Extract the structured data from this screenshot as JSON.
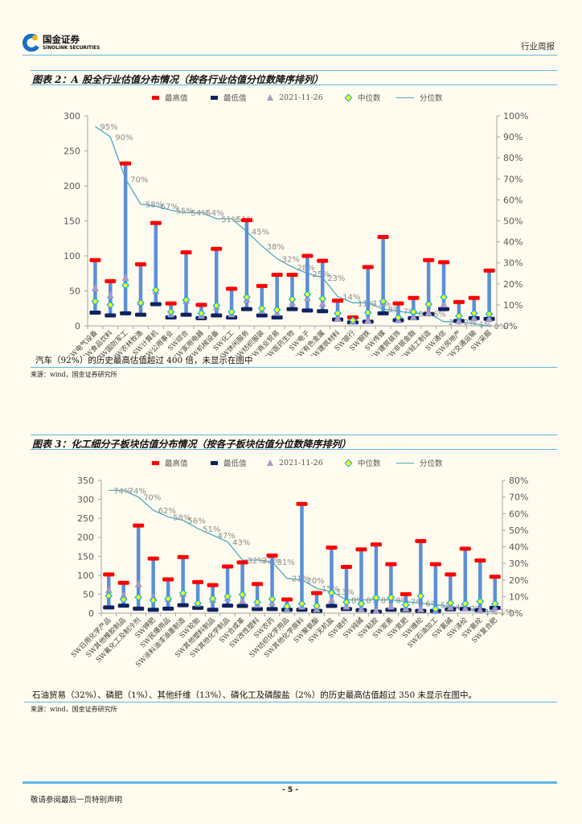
{
  "header": {
    "company_cn": "国金证券",
    "company_en": "SINOLINK SECURITIES",
    "report_type": "行业周报"
  },
  "figures": [
    {
      "note": "汽车（92%）的历史最高估值超过 400 倍，未显示在图中",
      "source": "来源：wind，国金证券研究所"
    },
    {
      "note": "石油贸易（32%）、磷肥（1%）、其他纤维（13%）、磷化工及磷酸盐（2%）的历史最高估值超过 350 未显示在图中。",
      "source": "来源：wind，国金证券研究所"
    }
  ],
  "footer": {
    "page": "- 5 -",
    "disclaimer": "敬请参阅最后一页特别声明"
  },
  "colors": {
    "accent_blue": "#5bb8e8",
    "max": "#ff0000",
    "min": "#0e2260",
    "current": "#a79bc8",
    "median_fill": "#ffff00",
    "median_border": "#00b0f0",
    "range_bar": "#5b8fd8",
    "percentile_line": "#4bacc6"
  },
  "chart_data": [
    {
      "type": "bar",
      "subtype": "high-low range with markers, percentile line on secondary axis",
      "title": "图表 2：A 股全行业估值分布情况（按各行业估值分位数降序排列）",
      "categories": [
        "SW电气设备",
        "SW食品饮料",
        "SW国防军工",
        "SW农林牧渔",
        "SW计算机",
        "SW公用事业",
        "SW综合",
        "SW家用电器",
        "SW机械设备",
        "SW化工",
        "SW休闲服务",
        "SW纺织服装",
        "SW商业贸易",
        "SW医药生物",
        "SW电子",
        "SW有色金属",
        "SW建筑材料",
        "SW银行",
        "SW钢铁",
        "SW传媒",
        "SW建筑装饰",
        "SW非银金融",
        "SW轻工制造",
        "SW通信",
        "SW房地产",
        "SW交通运输",
        "SW采掘"
      ],
      "series": [
        {
          "name": "最高值",
          "marker": "bar-cap",
          "values": [
            94,
            64,
            232,
            88,
            147,
            32,
            105,
            30,
            110,
            53,
            151,
            57,
            73,
            73,
            100,
            93,
            36,
            12,
            84,
            127,
            32,
            40,
            94,
            91,
            34,
            40,
            79
          ]
        },
        {
          "name": "最低值",
          "marker": "bar-cap",
          "values": [
            19,
            15,
            18,
            16,
            31,
            12,
            16,
            11,
            15,
            12,
            24,
            15,
            12,
            24,
            22,
            21,
            9,
            5,
            6,
            18,
            8,
            11,
            17,
            24,
            7,
            11,
            10
          ]
        },
        {
          "name": "2021-11-26",
          "marker": "triangle",
          "values": [
            54,
            44,
            69,
            34,
            50,
            17,
            36,
            15,
            27,
            17,
            38,
            22,
            19,
            33,
            40,
            32,
            11,
            6.5,
            8,
            33,
            8.5,
            13,
            19,
            31,
            7.5,
            11,
            10
          ]
        },
        {
          "name": "中位数",
          "marker": "diamond",
          "values": [
            35,
            30,
            58,
            33,
            51,
            20,
            37,
            18,
            29,
            20,
            41,
            25,
            23,
            38,
            45,
            39,
            18,
            8,
            19,
            35,
            12,
            20,
            31,
            41,
            14,
            18,
            17
          ]
        },
        {
          "name": "分位数",
          "type": "line",
          "axis": "right",
          "unit": "%",
          "values": [
            95,
            90,
            70,
            58,
            57,
            55,
            54,
            54,
            51,
            51,
            45,
            38,
            32,
            28,
            25,
            23,
            14,
            11,
            11,
            8,
            7,
            6,
            6,
            2,
            2,
            1,
            0
          ],
          "labels": [
            "95%",
            "90%",
            "70%",
            "58%",
            "57%",
            "55%",
            "54%",
            "54%",
            "51%",
            "51%",
            "45%",
            "38%",
            "32%",
            "28%",
            "25%",
            "23%",
            "14%",
            "11%",
            "11%",
            "8%",
            "7%",
            "6%",
            "6%",
            "2%",
            "2%",
            "1%",
            "0%"
          ]
        }
      ],
      "xlabel": "",
      "ylabel": "",
      "ylim": [
        0,
        300
      ],
      "yticks": [
        0,
        50,
        100,
        150,
        200,
        250,
        300
      ],
      "y2lim": [
        0,
        100
      ],
      "y2ticks": [
        "0%",
        "10%",
        "20%",
        "30%",
        "40%",
        "50%",
        "60%",
        "70%",
        "80%",
        "90%",
        "100%"
      ],
      "grid": false,
      "legend": "top"
    },
    {
      "type": "bar",
      "subtype": "high-low range with markers, percentile line on secondary axis",
      "title": "图表 3：化工细分子板块估值分布情况（按各子板块估值分位数降序排列）",
      "categories": [
        "SW日用化学产品",
        "SW其他橡胶制品",
        "SW氟化工及制冷剂",
        "SW钾肥",
        "SW民爆用品",
        "SW涂料油漆油墨制造",
        "SW轮胎",
        "SW其他塑料制品",
        "SW其他化学制品",
        "SW合成革",
        "SW改性塑料",
        "SW农药",
        "SW纺织化学用品",
        "SW其他化学原料",
        "SW聚氨酯",
        "SW无机盐",
        "SW玻纤",
        "SW纯碱",
        "SW粘胶",
        "SW炭黑",
        "SW氮肥",
        "SW维纶",
        "SW石油加工",
        "SW氯碱",
        "SW涤纶",
        "SW氨纶",
        "SW复合肥"
      ],
      "series": [
        {
          "name": "最高值",
          "marker": "bar-cap",
          "values": [
            102,
            80,
            231,
            144,
            89,
            148,
            82,
            74,
            123,
            134,
            77,
            152,
            36,
            288,
            53,
            173,
            122,
            168,
            181,
            129,
            50,
            190,
            129,
            102,
            170,
            139,
            96
          ]
        },
        {
          "name": "最低值",
          "marker": "bar-cap",
          "values": [
            15,
            20,
            12,
            9,
            12,
            21,
            14,
            9,
            20,
            19,
            11,
            11,
            9,
            9,
            6,
            19,
            11,
            8,
            4,
            9,
            8,
            6,
            6,
            10,
            11,
            8,
            14
          ]
        },
        {
          "name": "2021-11-26",
          "marker": "triangle",
          "values": [
            61,
            47,
            77,
            43,
            38,
            52,
            26,
            36,
            40,
            34,
            23,
            28,
            10,
            18,
            11,
            35,
            18,
            11,
            7,
            18,
            13,
            11,
            6,
            16,
            13,
            8,
            14
          ]
        },
        {
          "name": "中位数",
          "marker": "diamond",
          "values": [
            46,
            36,
            42,
            34,
            38,
            53,
            26,
            38,
            44,
            49,
            29,
            37,
            18,
            25,
            19,
            54,
            29,
            25,
            41,
            41,
            22,
            45,
            11,
            27,
            25,
            31,
            25
          ]
        },
        {
          "name": "分位数",
          "type": "line",
          "axis": "right",
          "unit": "%",
          "values": [
            74,
            74,
            70,
            62,
            58,
            56,
            51,
            47,
            43,
            32,
            32,
            31,
            21,
            20,
            15,
            13,
            8,
            8,
            8,
            8,
            7,
            6,
            5,
            4,
            3,
            1,
            1
          ],
          "labels": [
            "74%",
            "74%",
            "70%",
            "62%",
            "58%",
            "56%",
            "51%",
            "47%",
            "43%",
            "32%",
            "32%",
            "31%",
            "21%",
            "20%",
            "15%",
            "13%",
            "8%",
            "8%",
            "8%",
            "8%",
            "7%",
            "6%",
            "5%",
            "4%",
            "3%",
            "1%",
            "1%"
          ]
        }
      ],
      "xlabel": "",
      "ylabel": "",
      "ylim": [
        0,
        350
      ],
      "yticks": [
        0,
        50,
        100,
        150,
        200,
        250,
        300,
        350
      ],
      "y2lim": [
        0,
        80
      ],
      "y2ticks": [
        "0%",
        "10%",
        "20%",
        "30%",
        "40%",
        "50%",
        "60%",
        "70%",
        "80%"
      ],
      "grid": false,
      "legend": "top"
    }
  ]
}
